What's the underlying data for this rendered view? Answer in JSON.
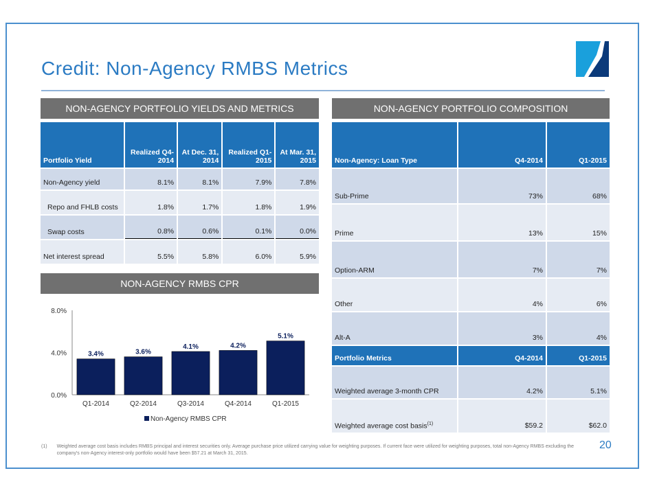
{
  "title": "Credit: Non-Agency RMBS Metrics",
  "page_number": "20",
  "colors": {
    "accent": "#2b7bc3",
    "table_header": "#1f72b8",
    "bar": "#0b1f5c"
  },
  "left": {
    "header": "NON-AGENCY PORTFOLIO YIELDS AND METRICS",
    "columns": [
      "Portfolio Yield",
      "Realized Q4-2014",
      "At Dec. 31, 2014",
      "Realized Q1-2015",
      "At Mar. 31, 2015"
    ],
    "rows": [
      {
        "label": "Non-Agency yield",
        "values": [
          "8.1%",
          "8.1%",
          "7.9%",
          "7.8%"
        ]
      },
      {
        "label": "Repo and FHLB costs",
        "values": [
          "1.8%",
          "1.7%",
          "1.8%",
          "1.9%"
        ]
      },
      {
        "label": "Swap costs",
        "values": [
          "0.8%",
          "0.6%",
          "0.1%",
          "0.0%"
        ]
      },
      {
        "label": "Net interest spread",
        "values": [
          "5.5%",
          "5.8%",
          "6.0%",
          "5.9%"
        ]
      }
    ]
  },
  "cpr": {
    "header": "NON-AGENCY RMBS CPR"
  },
  "chart_data": {
    "type": "bar",
    "categories": [
      "Q1-2014",
      "Q2-2014",
      "Q3-2014",
      "Q4-2014",
      "Q1-2015"
    ],
    "values": [
      3.4,
      3.6,
      4.1,
      4.2,
      5.1
    ],
    "data_labels": [
      "3.4%",
      "3.6%",
      "4.1%",
      "4.2%",
      "5.1%"
    ],
    "yticks": [
      "0.0%",
      "4.0%",
      "8.0%"
    ],
    "ylim": [
      0,
      8
    ],
    "legend": "Non-Agency RMBS CPR",
    "legend_position": "bottom"
  },
  "right": {
    "header": "NON-AGENCY PORTFOLIO COMPOSITION",
    "columns": [
      "Non-Agency: Loan Type",
      "Q4-2014",
      "Q1-2015"
    ],
    "rows": [
      {
        "label": "Sub-Prime",
        "values": [
          "73%",
          "68%"
        ]
      },
      {
        "label": "Prime",
        "values": [
          "13%",
          "15%"
        ]
      },
      {
        "label": "Option-ARM",
        "values": [
          "7%",
          "7%"
        ]
      },
      {
        "label": "Other",
        "values": [
          "4%",
          "6%"
        ]
      },
      {
        "label": "Alt-A",
        "values": [
          "3%",
          "4%"
        ]
      }
    ],
    "metrics_columns": [
      "Portfolio Metrics",
      "Q4-2014",
      "Q1-2015"
    ],
    "metrics_rows": [
      {
        "label": "Weighted average 3-month CPR",
        "sup": "",
        "values": [
          "4.2%",
          "5.1%"
        ]
      },
      {
        "label": "Weighted average cost basis",
        "sup": "(1)",
        "values": [
          "$59.2",
          "$62.0"
        ]
      }
    ]
  },
  "footnote": {
    "marker": "(1)",
    "text": "Weighted average cost basis includes RMBS principal and interest securities only.  Average purchase price utilized carrying value for weighting purposes.  If current face were utilized for weighting purposes, total non-Agency RMBS excluding the company's non-Agency interest-only portfolio would have been $57.21 at March 31, 2015."
  }
}
